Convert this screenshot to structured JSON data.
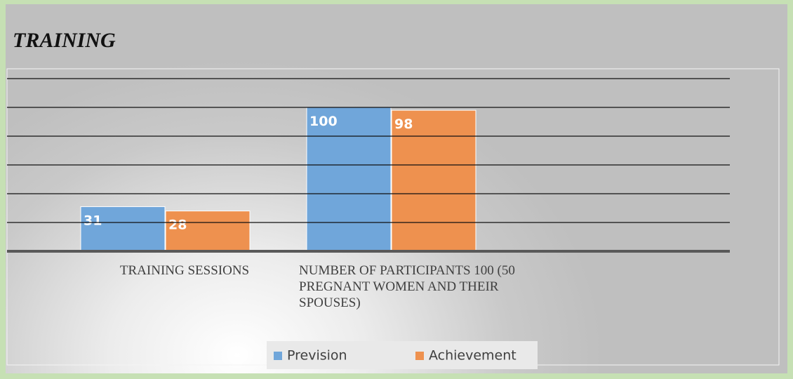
{
  "chart_data": {
    "type": "bar",
    "title": "TRAINING",
    "categories": [
      "TRAINING SESSIONS",
      "NUMBER OF PARTICIPANTS 100 (50 PREGNANT WOMEN AND THEIR SPOUSES)"
    ],
    "series": [
      {
        "name": "Prevision",
        "color": "#70a6da",
        "values": [
          31,
          100
        ]
      },
      {
        "name": "Achievement",
        "color": "#ee914f",
        "values": [
          28,
          98
        ]
      }
    ],
    "ylim": [
      0,
      120
    ],
    "yticks": [
      0,
      20,
      40,
      60,
      80,
      100,
      120
    ],
    "grid": true,
    "legend": "bottom"
  }
}
